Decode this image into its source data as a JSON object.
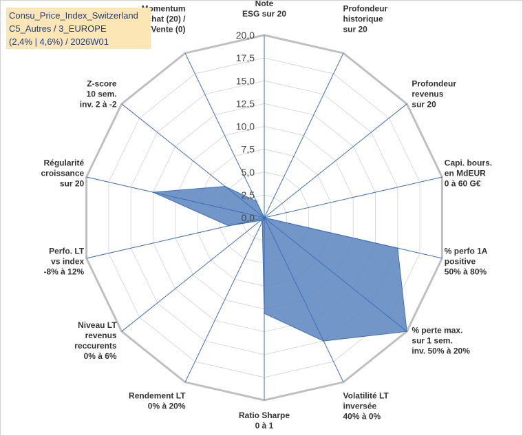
{
  "title": {
    "line1": "Consu_Price_Index_Switzerland",
    "line2": "C5_Autres / 3_EUROPE",
    "line3": "(2,4% | 4,6%) / 2026W01"
  },
  "colors": {
    "fill": "#5b84be",
    "stroke": "#3d6fb5",
    "axis": "#3d6fb5",
    "grid": "#d9d9d9",
    "outer": "#bfbfbf",
    "title_bg": "#fde6b5",
    "title_text": "#1f3d7a"
  },
  "chart_data": {
    "type": "radar",
    "title": "Consu_Price_Index_Switzerland",
    "rmin": 0,
    "rmax": 20,
    "tick_step": 2.5,
    "tick_labels": [
      "0,0",
      "2,5",
      "5,0",
      "7,5",
      "10,0",
      "12,5",
      "15,0",
      "17,5",
      "20,0"
    ],
    "axes": [
      {
        "label": [
          "Note",
          "ESG sur 20"
        ],
        "value": 0
      },
      {
        "label": [
          "Profondeur",
          "historique",
          "sur 20"
        ],
        "value": 0
      },
      {
        "label": [
          "Profondeur",
          "revenus",
          "sur 20"
        ],
        "value": 0
      },
      {
        "label": [
          "Capi. bours.",
          "en MdEUR",
          "0 à 60 G€"
        ],
        "value": 0
      },
      {
        "label": [
          "% perfo 1A",
          "positive",
          "50% à 80%"
        ],
        "value": 15.0
      },
      {
        "label": [
          "% perte max.",
          "sur 1 sem.",
          "inv. 50% à 20%"
        ],
        "value": 20.0
      },
      {
        "label": [
          "Volatilité LT",
          "inversée",
          "40% à 0%"
        ],
        "value": 15.0
      },
      {
        "label": [
          "Ratio Sharpe",
          "0 à 1"
        ],
        "value": 10.5
      },
      {
        "label": [
          "Rendement LT",
          "0% à 20%"
        ],
        "value": 0.5
      },
      {
        "label": [
          "Niveau LT",
          "revenus",
          "reccurents",
          "0% à 6%"
        ],
        "value": 0.5
      },
      {
        "label": [
          "Perfo. LT",
          "vs index",
          "-8% à 12%"
        ],
        "value": 4.0
      },
      {
        "label": [
          "Régularité",
          "croissance",
          "sur 20"
        ],
        "value": 12.5
      },
      {
        "label": [
          "Z-score",
          "10 sem.",
          "inv. 2 à -2"
        ],
        "value": 5.5
      },
      {
        "label": [
          "Momentum",
          "Achat (20) /",
          "Vente (0)"
        ],
        "value": 2.0
      }
    ]
  }
}
